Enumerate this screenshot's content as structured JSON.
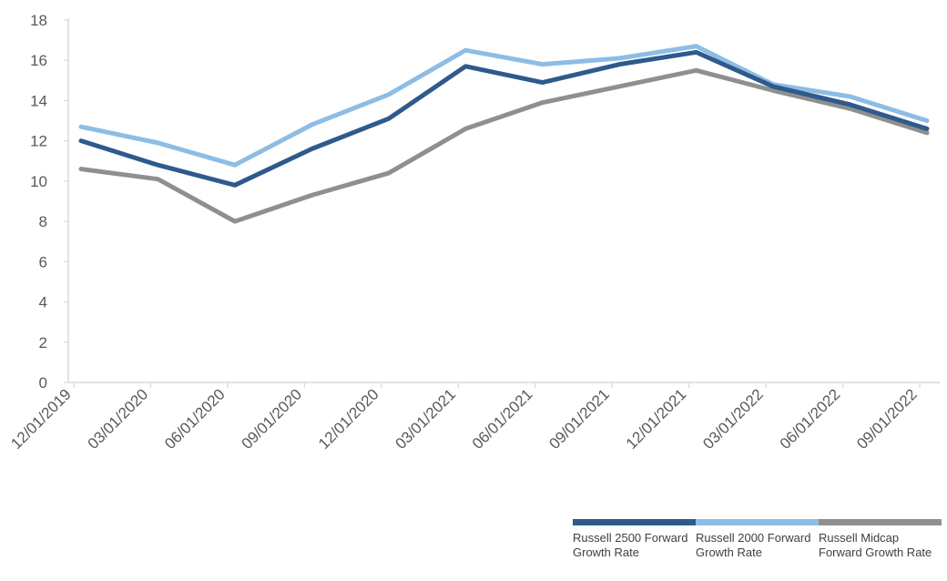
{
  "chart_data": {
    "type": "line",
    "title": "",
    "xlabel": "",
    "ylabel": "",
    "ylim": [
      0,
      18
    ],
    "y_ticks": [
      "0",
      "2",
      "4",
      "6",
      "8",
      "10",
      "12",
      "14",
      "16",
      "18"
    ],
    "categories": [
      "12/01/2019",
      "03/01/2020",
      "06/01/2020",
      "09/01/2020",
      "12/01/2020",
      "03/01/2021",
      "06/01/2021",
      "09/01/2021",
      "12/01/2021",
      "03/01/2022",
      "06/01/2022",
      "09/01/2022"
    ],
    "grid": false,
    "legend_position": "bottom-right",
    "series": [
      {
        "name": "Russell 2500 Forward Growth Rate",
        "color": "#2e5a8c",
        "values": [
          12.0,
          10.8,
          9.8,
          11.6,
          13.1,
          15.7,
          14.9,
          15.8,
          16.4,
          14.7,
          13.8,
          12.6
        ]
      },
      {
        "name": "Russell 2000 Forward Growth Rate",
        "color": "#8dbde4",
        "values": [
          12.7,
          11.9,
          10.8,
          12.8,
          14.3,
          16.5,
          15.8,
          16.1,
          16.7,
          14.8,
          14.2,
          13.0
        ]
      },
      {
        "name": "Russell Midcap Forward Growth Rate",
        "color": "#8f8f8f",
        "values": [
          10.6,
          10.1,
          8.0,
          9.3,
          10.4,
          12.6,
          13.9,
          14.7,
          15.5,
          14.5,
          13.6,
          12.4
        ]
      }
    ]
  }
}
